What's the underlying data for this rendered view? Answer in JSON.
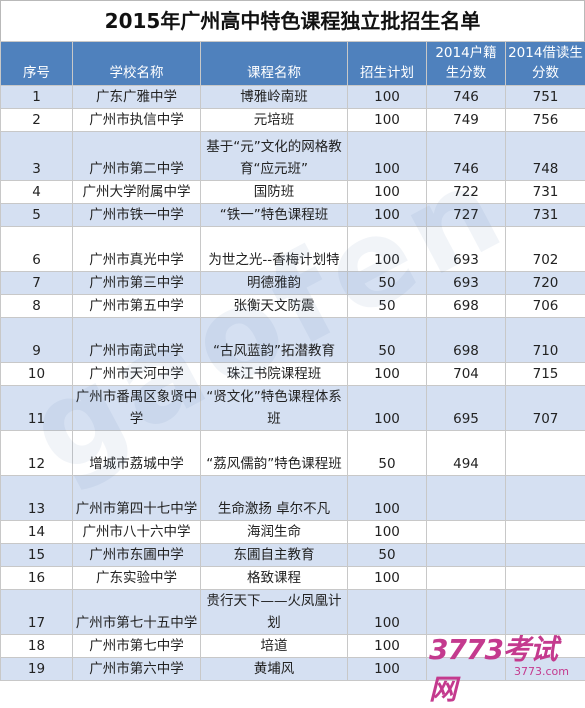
{
  "title": "2015年广州高中特色课程独立批招生名单",
  "headers": [
    "序号",
    "学校名称",
    "课程名称",
    "招生计划",
    "2014户籍生分数",
    "2014借读生分数"
  ],
  "rows": [
    {
      "no": "1",
      "school": "广东广雅中学",
      "course": "博雅岭南班",
      "plan": "100",
      "huji": "746",
      "jiedu": "751"
    },
    {
      "no": "2",
      "school": "广州市执信中学",
      "course": "元培班",
      "plan": "100",
      "huji": "749",
      "jiedu": "756"
    },
    {
      "no": "3",
      "school": "广州市第二中学",
      "course": "基于“元”文化的网格教育“应元班”",
      "plan": "100",
      "huji": "746",
      "jiedu": "748"
    },
    {
      "no": "4",
      "school": "广州大学附属中学",
      "course": "国防班",
      "plan": "100",
      "huji": "722",
      "jiedu": "731"
    },
    {
      "no": "5",
      "school": "广州市铁一中学",
      "course": "“铁一”特色课程班",
      "plan": "100",
      "huji": "727",
      "jiedu": "731"
    },
    {
      "no": "6",
      "school": "广州市真光中学",
      "course": "为世之光--香梅计划特",
      "plan": "100",
      "huji": "693",
      "jiedu": "702"
    },
    {
      "no": "7",
      "school": "广州市第三中学",
      "course": "明德雅韵",
      "plan": "50",
      "huji": "693",
      "jiedu": "720"
    },
    {
      "no": "8",
      "school": "广州市第五中学",
      "course": "张衡天文防震",
      "plan": "50",
      "huji": "698",
      "jiedu": "706"
    },
    {
      "no": "9",
      "school": "广州市南武中学",
      "course": "“古风蓝韵”拓潜教育",
      "plan": "50",
      "huji": "698",
      "jiedu": "710"
    },
    {
      "no": "10",
      "school": "广州市天河中学",
      "course": "珠江书院课程班",
      "plan": "100",
      "huji": "704",
      "jiedu": "715"
    },
    {
      "no": "11",
      "school": "广州市番禺区象贤中学",
      "course": "“贤文化”特色课程体系班",
      "plan": "100",
      "huji": "695",
      "jiedu": "707"
    },
    {
      "no": "12",
      "school": "增城市荔城中学",
      "course": "“荔风儒韵”特色课程班",
      "plan": "50",
      "huji": "494",
      "jiedu": ""
    },
    {
      "no": "13",
      "school": "广州市第四十七中学",
      "course": "生命激扬 卓尔不凡",
      "plan": "100",
      "huji": "",
      "jiedu": ""
    },
    {
      "no": "14",
      "school": "广州市八十六中学",
      "course": "海润生命",
      "plan": "100",
      "huji": "",
      "jiedu": ""
    },
    {
      "no": "15",
      "school": "广州市东圃中学",
      "course": "东圃自主教育",
      "plan": "50",
      "huji": "",
      "jiedu": ""
    },
    {
      "no": "16",
      "school": "广东实验中学",
      "course": "格致课程",
      "plan": "100",
      "huji": "",
      "jiedu": ""
    },
    {
      "no": "17",
      "school": "广州市第七十五中学",
      "course": "贵行天下——火凤凰计划",
      "plan": "100",
      "huji": "",
      "jiedu": ""
    },
    {
      "no": "18",
      "school": "广州市第七中学",
      "course": "培道",
      "plan": "100",
      "huji": "",
      "jiedu": ""
    },
    {
      "no": "19",
      "school": "广州市第六中学",
      "course": "黄埔风",
      "plan": "100",
      "huji": "",
      "jiedu": ""
    }
  ],
  "logo": {
    "main": "3773考试网",
    "sub": "3773.com"
  },
  "watermark": "gaofen",
  "colors": {
    "header_bg": "#4f81bd",
    "band_bg": "#d5e0f2",
    "logo": "#c43a8e"
  }
}
